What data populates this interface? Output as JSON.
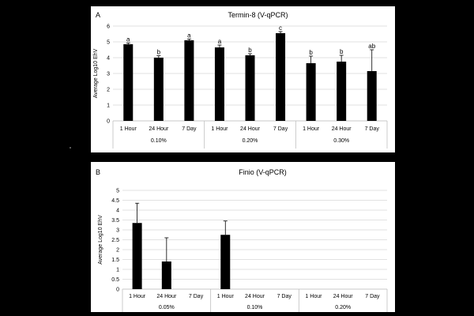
{
  "chart_data": [
    {
      "type": "bar",
      "panel_label": "A",
      "title": "Termin-8 (V-qPCR)",
      "ylabel": "Average Log10 EhV",
      "ylim": [
        0,
        6
      ],
      "yticks": [
        0,
        1,
        2,
        3,
        4,
        5,
        6
      ],
      "grid": true,
      "groups": [
        {
          "label": "0.10%",
          "categories": [
            "1 Hour",
            "24 Hour",
            "7 Day"
          ],
          "values": [
            4.85,
            4.0,
            5.1
          ],
          "errors": [
            0.08,
            0.12,
            0.08
          ],
          "letters": [
            "a",
            "b",
            "a"
          ]
        },
        {
          "label": "0.20%",
          "categories": [
            "1 Hour",
            "24 Hour",
            "7 Day"
          ],
          "values": [
            4.65,
            4.15,
            5.55
          ],
          "errors": [
            0.15,
            0.1,
            0.1
          ],
          "letters": [
            "a",
            "b",
            "c"
          ]
        },
        {
          "label": "0.30%",
          "categories": [
            "1 Hour",
            "24 Hour",
            "7 Day"
          ],
          "values": [
            3.65,
            3.75,
            3.15
          ],
          "errors": [
            0.45,
            0.4,
            1.35
          ],
          "letters": [
            "b",
            "b",
            "ab"
          ]
        }
      ]
    },
    {
      "type": "bar",
      "panel_label": "B",
      "title": "Finio (V-qPCR)",
      "ylabel": "Average Log10 EhV",
      "ylim": [
        0,
        5
      ],
      "yticks": [
        0,
        0.5,
        1,
        1.5,
        2,
        2.5,
        3,
        3.5,
        4,
        4.5,
        5
      ],
      "grid": true,
      "groups": [
        {
          "label": "0.05%",
          "categories": [
            "1 Hour",
            "24 Hour",
            "7 Day"
          ],
          "values": [
            3.35,
            1.4,
            0
          ],
          "errors": [
            1.0,
            1.2,
            0
          ],
          "letters": [
            "",
            "",
            ""
          ]
        },
        {
          "label": "0.10%",
          "categories": [
            "1 Hour",
            "24 Hour",
            "7 Day"
          ],
          "values": [
            2.75,
            0,
            0
          ],
          "errors": [
            0.7,
            0,
            0
          ],
          "letters": [
            "",
            "",
            ""
          ]
        },
        {
          "label": "0.20%",
          "categories": [
            "1 Hour",
            "24 Hour",
            "7 Day"
          ],
          "values": [
            0,
            0,
            0
          ],
          "errors": [
            0,
            0,
            0
          ],
          "letters": [
            "",
            "",
            ""
          ]
        }
      ]
    }
  ]
}
